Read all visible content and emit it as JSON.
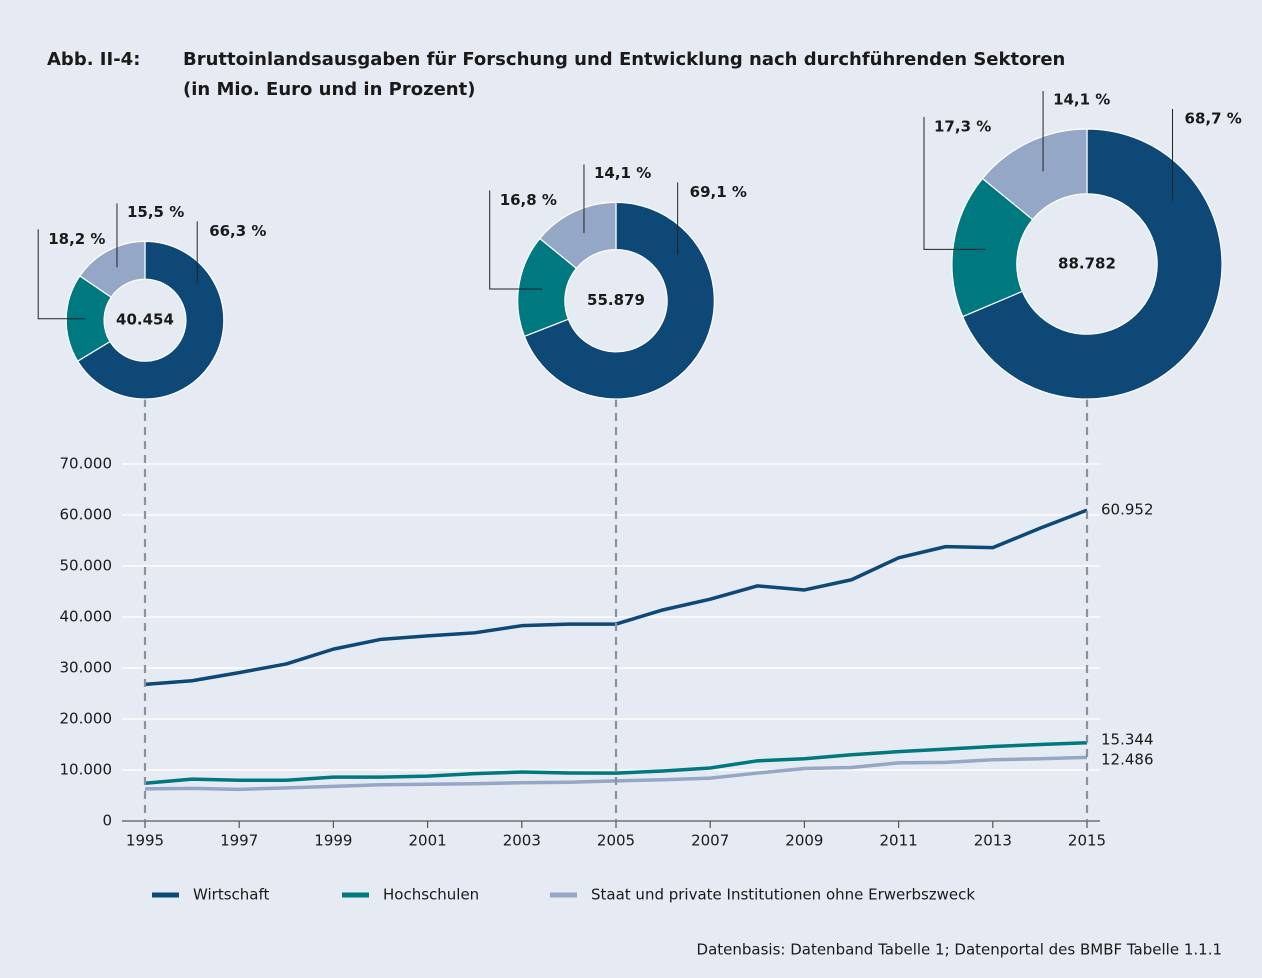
{
  "header": {
    "label": "Abb. II-4:"
  },
  "source": "Datenbasis: Datenband Tabelle 1; Datenportal des BMBF Tabelle 1.1.1",
  "chart_data": [
    {
      "type": "line",
      "title": "Bruttoinlandsausgaben für Forschung und Entwicklung nach durchführenden Sektoren",
      "subtitle": "(in Mio. Euro und in Prozent)",
      "x": [
        1995,
        1996,
        1997,
        1998,
        1999,
        2000,
        2001,
        2002,
        2003,
        2004,
        2005,
        2006,
        2007,
        2008,
        2009,
        2010,
        2011,
        2012,
        2013,
        2014,
        2015
      ],
      "xlim": [
        1995,
        2015
      ],
      "xticks": [
        1995,
        1997,
        1999,
        2001,
        2003,
        2005,
        2007,
        2009,
        2011,
        2013,
        2015
      ],
      "ylim": [
        0,
        70000
      ],
      "yticks": [
        0,
        {
          "value": 10000,
          "label": "10.000"
        },
        {
          "value": 20000,
          "label": "20.000"
        },
        {
          "value": 30000,
          "label": "30.000"
        },
        {
          "value": 40000,
          "label": "40.000"
        },
        {
          "value": 50000,
          "label": "50.000"
        },
        {
          "value": 60000,
          "label": "60.000"
        },
        {
          "value": 70000,
          "label": "70.000"
        }
      ],
      "grid": true,
      "series": [
        {
          "name": "Wirtschaft",
          "color": "#0d4877",
          "values": [
            26800,
            27500,
            29100,
            30800,
            33700,
            35600,
            36300,
            36900,
            38300,
            38600,
            38612,
            41400,
            43500,
            46100,
            45300,
            47300,
            51600,
            53800,
            53600,
            57400,
            60952
          ],
          "value_labels": [
            null,
            null,
            null,
            null,
            null,
            null,
            null,
            null,
            null,
            null,
            null,
            null,
            null,
            null,
            null,
            null,
            null,
            null,
            null,
            null,
            "60.952"
          ]
        },
        {
          "name": "Hochschulen",
          "color": "#00787f",
          "values": [
            7400,
            8200,
            8000,
            8000,
            8600,
            8600,
            8800,
            9300,
            9600,
            9400,
            9388,
            9800,
            10400,
            11800,
            12200,
            13000,
            13600,
            14100,
            14600,
            15000,
            15344
          ],
          "value_labels": [
            null,
            null,
            null,
            null,
            null,
            null,
            null,
            null,
            null,
            null,
            null,
            null,
            null,
            null,
            null,
            null,
            null,
            null,
            null,
            null,
            "15.344"
          ]
        },
        {
          "name": "Staat und private Institutionen ohne Erwerbszweck",
          "color": "#94a7c6",
          "values": [
            6300,
            6400,
            6200,
            6500,
            6800,
            7100,
            7200,
            7300,
            7500,
            7600,
            7879,
            8100,
            8400,
            9400,
            10300,
            10500,
            11400,
            11500,
            12000,
            12200,
            12486
          ],
          "value_labels": [
            null,
            null,
            null,
            null,
            null,
            null,
            null,
            null,
            null,
            null,
            null,
            null,
            null,
            null,
            null,
            null,
            null,
            null,
            null,
            null,
            "12.486"
          ]
        }
      ]
    },
    {
      "type": "pie",
      "donut": true,
      "x": 1995,
      "total": 40454,
      "total_label": "40.454",
      "values": [
        66.3,
        18.2,
        15.5
      ],
      "value_labels": [
        "66,3 %",
        "18,2 %",
        "15,5 %"
      ],
      "colors": [
        "#0d4877",
        "#00787f",
        "#94a7c6"
      ]
    },
    {
      "type": "pie",
      "donut": true,
      "x": 2005,
      "total": 55879,
      "total_label": "55.879",
      "values": [
        69.1,
        16.8,
        14.1
      ],
      "value_labels": [
        "69,1 %",
        "16,8 %",
        "14,1 %"
      ],
      "colors": [
        "#0d4877",
        "#00787f",
        "#94a7c6"
      ]
    },
    {
      "type": "pie",
      "donut": true,
      "x": 2015,
      "total": 88782,
      "total_label": "88.782",
      "values": [
        68.7,
        17.3,
        14.1
      ],
      "value_labels": [
        "68,7 %",
        "17,3 %",
        "14,1 %"
      ],
      "colors": [
        "#0d4877",
        "#00787f",
        "#94a7c6"
      ]
    }
  ]
}
